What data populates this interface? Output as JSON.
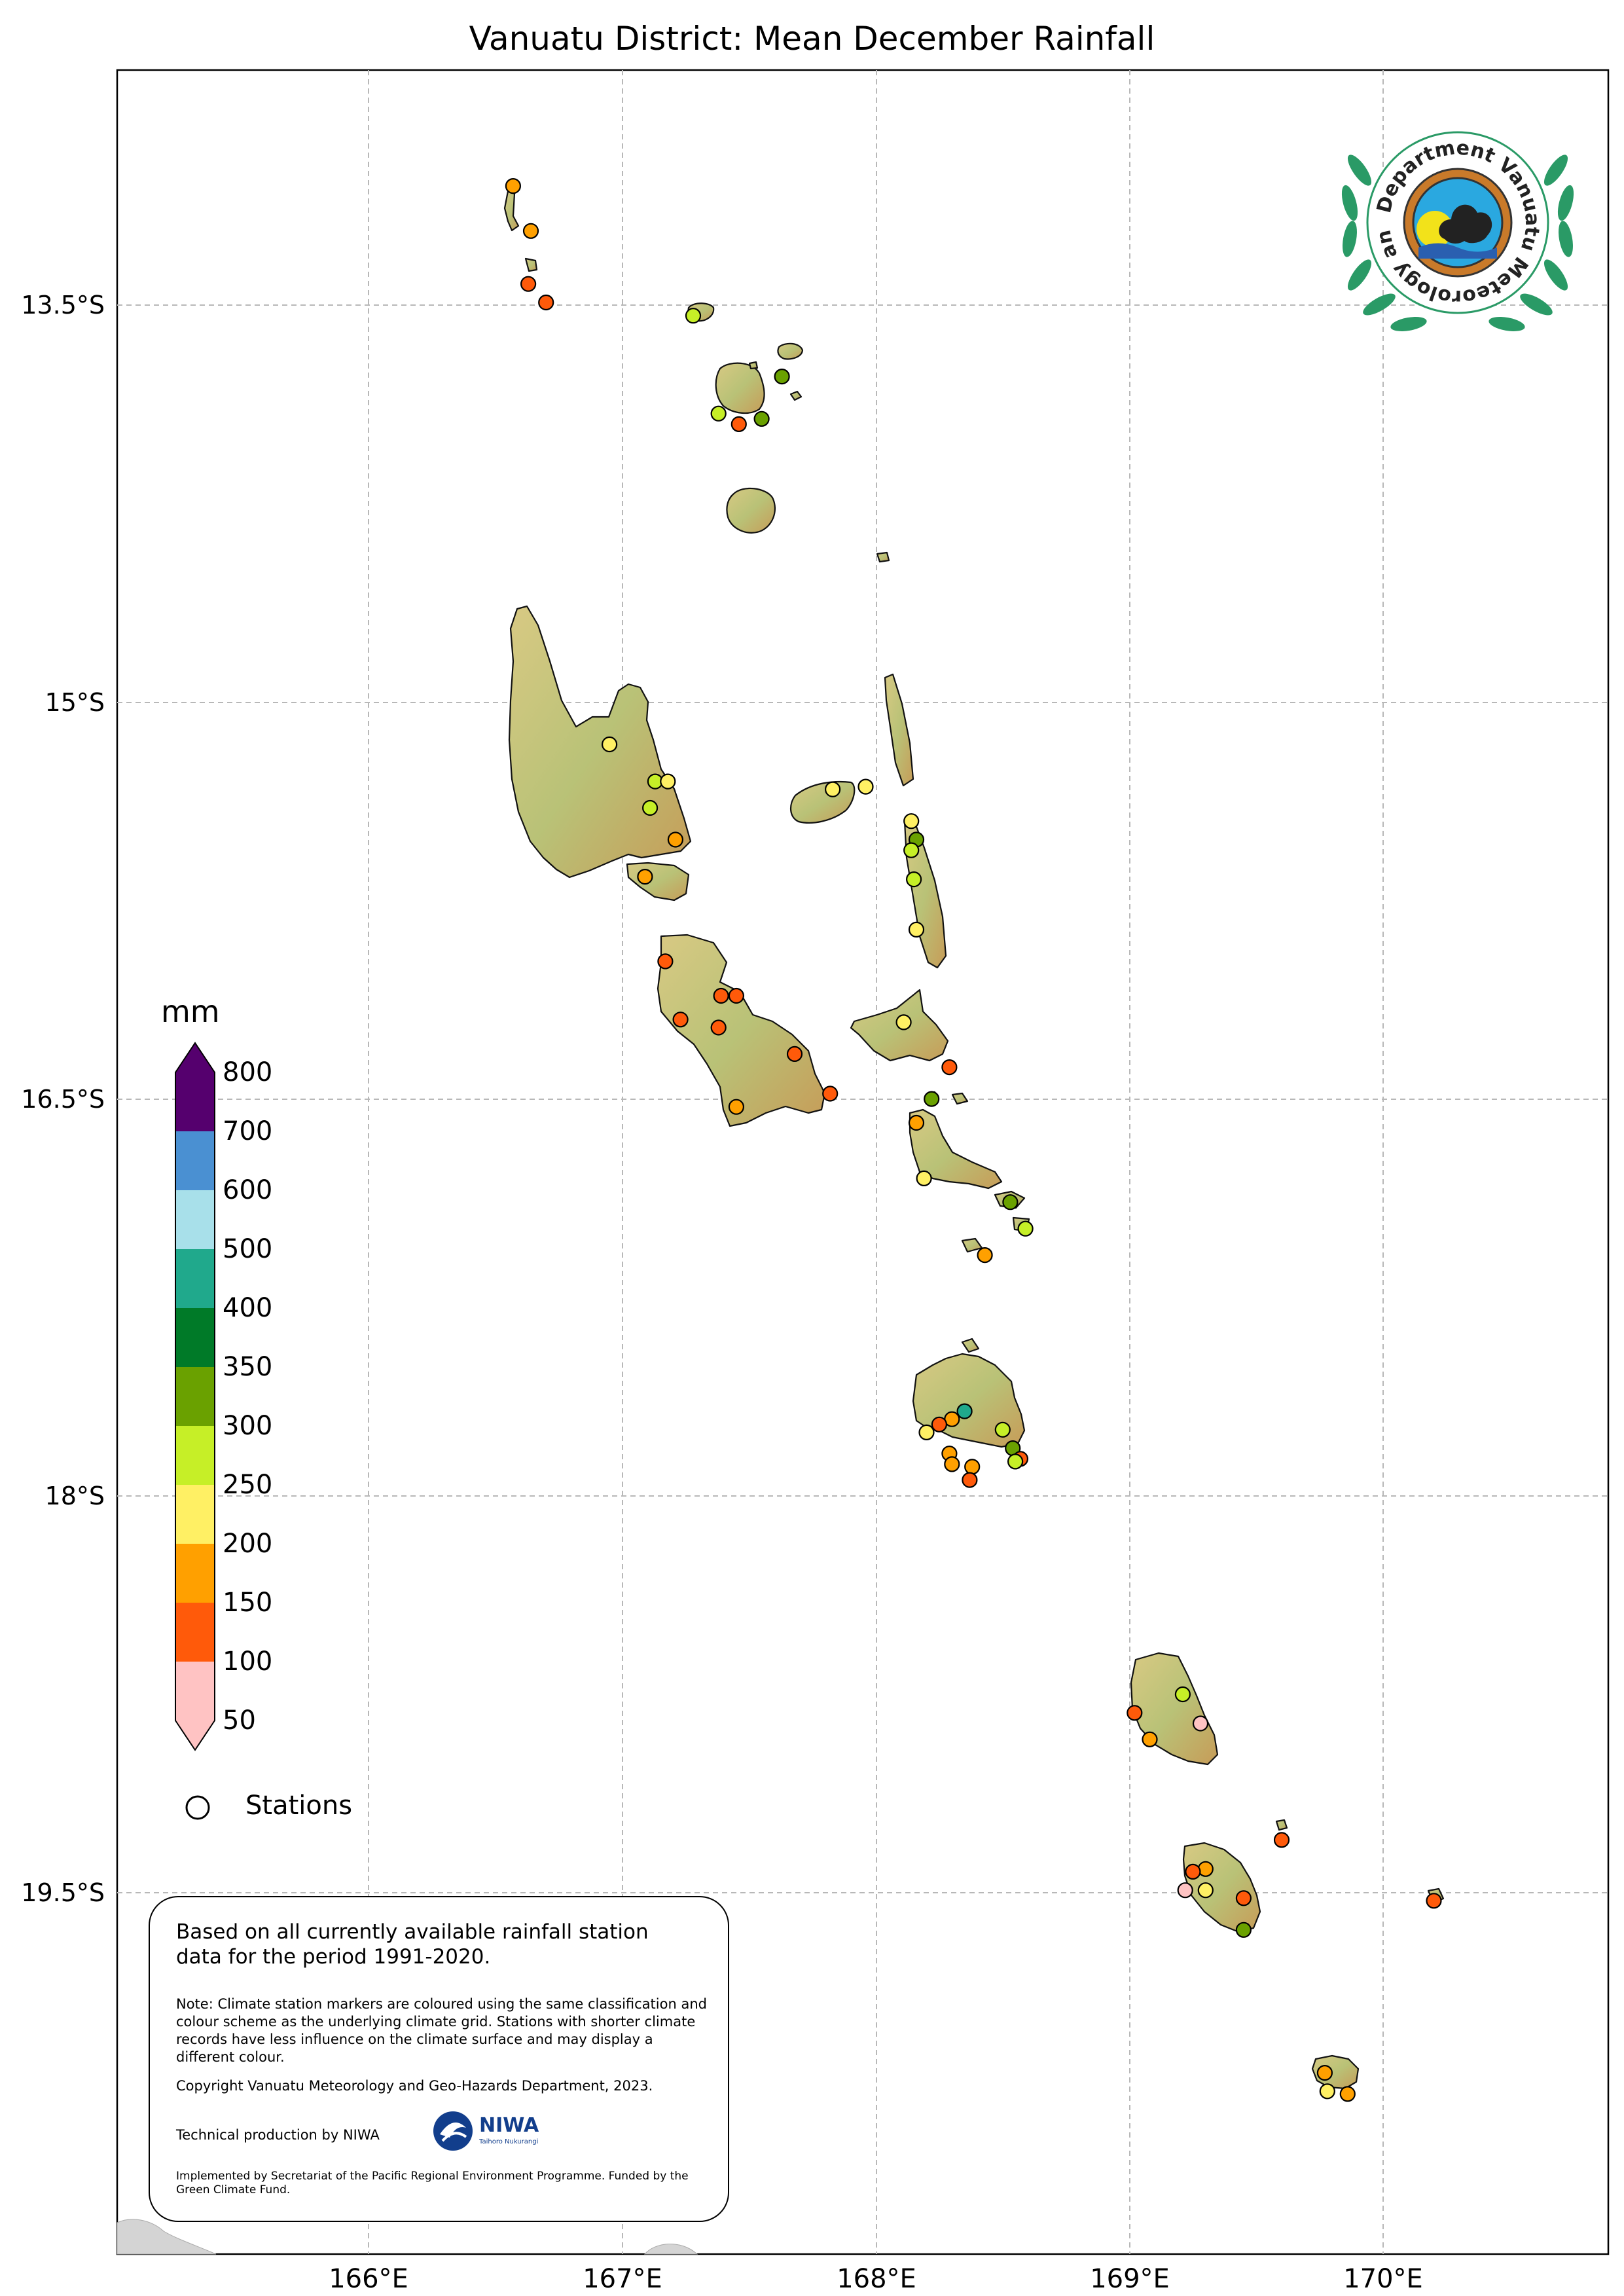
{
  "title": "Vanuatu District: Mean December Rainfall",
  "axes": {
    "lat_labels": [
      "13.5°S",
      "15°S",
      "16.5°S",
      "18°S",
      "19.5°S"
    ],
    "lon_labels": [
      "166°E",
      "167°E",
      "168°E",
      "169°E",
      "170°E"
    ]
  },
  "legend": {
    "unit": "mm",
    "ticks": [
      "800",
      "700",
      "600",
      "500",
      "400",
      "350",
      "300",
      "250",
      "200",
      "150",
      "100",
      "50"
    ],
    "colors": [
      "#55006e",
      "#4a90d2",
      "#a8e0ea",
      "#20a98c",
      "#007a28",
      "#6aa100",
      "#c6ef27",
      "#fff064",
      "#ffa000",
      "#ff5a0a",
      "#ffc3c3"
    ],
    "stations_label": "Stations"
  },
  "info": {
    "main": "Based on all currently available rainfall station data for the period 1991-2020.",
    "note": "Note: Climate station markers are coloured using the same classification and colour scheme as the underlying climate grid. Stations with shorter climate records have less influence on the climate surface and may display a different colour.",
    "copyright": "Copyright Vanuatu Meteorology and Geo-Hazards Department, 2023.",
    "technical": "Technical production by NIWA",
    "implemented": "Implemented by Secretariat of the Pacific Regional Environment Programme. Funded by the Green Climate Fund.",
    "niwa_name": "NIWA",
    "niwa_sub": "Taihoro Nukurangi"
  },
  "logo": {
    "ring_text": "Department Vanuatu Meteorology and Geo-Hazards"
  },
  "stations": [
    {
      "lon": 166.57,
      "lat": -13.05,
      "value": 175
    },
    {
      "lon": 166.64,
      "lat": -13.22,
      "value": 175
    },
    {
      "lon": 166.63,
      "lat": -13.42,
      "value": 125
    },
    {
      "lon": 166.7,
      "lat": -13.49,
      "value": 125
    },
    {
      "lon": 167.28,
      "lat": -13.54,
      "value": 275
    },
    {
      "lon": 167.63,
      "lat": -13.77,
      "value": 325
    },
    {
      "lon": 167.38,
      "lat": -13.91,
      "value": 275
    },
    {
      "lon": 167.55,
      "lat": -13.93,
      "value": 325
    },
    {
      "lon": 167.46,
      "lat": -13.95,
      "value": 125
    },
    {
      "lon": 166.95,
      "lat": -15.16,
      "value": 225
    },
    {
      "lon": 167.13,
      "lat": -15.3,
      "value": 275
    },
    {
      "lon": 167.18,
      "lat": -15.3,
      "value": 225
    },
    {
      "lon": 167.11,
      "lat": -15.4,
      "value": 275
    },
    {
      "lon": 167.21,
      "lat": -15.52,
      "value": 175
    },
    {
      "lon": 167.09,
      "lat": -15.66,
      "value": 175
    },
    {
      "lon": 167.96,
      "lat": -15.32,
      "value": 225
    },
    {
      "lon": 167.83,
      "lat": -15.33,
      "value": 225
    },
    {
      "lon": 168.14,
      "lat": -15.45,
      "value": 225
    },
    {
      "lon": 168.16,
      "lat": -15.52,
      "value": 325
    },
    {
      "lon": 168.14,
      "lat": -15.56,
      "value": 275
    },
    {
      "lon": 168.15,
      "lat": -15.67,
      "value": 275
    },
    {
      "lon": 168.16,
      "lat": -15.86,
      "value": 225
    },
    {
      "lon": 167.17,
      "lat": -15.98,
      "value": 125
    },
    {
      "lon": 167.39,
      "lat": -16.11,
      "value": 125
    },
    {
      "lon": 167.45,
      "lat": -16.11,
      "value": 125
    },
    {
      "lon": 167.23,
      "lat": -16.2,
      "value": 125
    },
    {
      "lon": 167.38,
      "lat": -16.23,
      "value": 125
    },
    {
      "lon": 167.68,
      "lat": -16.33,
      "value": 125
    },
    {
      "lon": 167.82,
      "lat": -16.48,
      "value": 125
    },
    {
      "lon": 167.45,
      "lat": -16.53,
      "value": 175
    },
    {
      "lon": 168.11,
      "lat": -16.21,
      "value": 225
    },
    {
      "lon": 168.29,
      "lat": -16.38,
      "value": 125
    },
    {
      "lon": 168.22,
      "lat": -16.5,
      "value": 325
    },
    {
      "lon": 168.16,
      "lat": -16.59,
      "value": 175
    },
    {
      "lon": 168.19,
      "lat": -16.8,
      "value": 225
    },
    {
      "lon": 168.53,
      "lat": -16.89,
      "value": 325
    },
    {
      "lon": 168.59,
      "lat": -16.99,
      "value": 275
    },
    {
      "lon": 168.43,
      "lat": -17.09,
      "value": 175
    },
    {
      "lon": 168.35,
      "lat": -17.68,
      "value": 425
    },
    {
      "lon": 168.3,
      "lat": -17.71,
      "value": 175
    },
    {
      "lon": 168.25,
      "lat": -17.73,
      "value": 125
    },
    {
      "lon": 168.2,
      "lat": -17.76,
      "value": 225
    },
    {
      "lon": 168.5,
      "lat": -17.75,
      "value": 275
    },
    {
      "lon": 168.54,
      "lat": -17.82,
      "value": 325
    },
    {
      "lon": 168.57,
      "lat": -17.86,
      "value": 125
    },
    {
      "lon": 168.55,
      "lat": -17.87,
      "value": 275
    },
    {
      "lon": 168.29,
      "lat": -17.84,
      "value": 175
    },
    {
      "lon": 168.3,
      "lat": -17.88,
      "value": 175
    },
    {
      "lon": 168.38,
      "lat": -17.89,
      "value": 175
    },
    {
      "lon": 168.37,
      "lat": -17.94,
      "value": 125
    },
    {
      "lon": 169.21,
      "lat": -18.75,
      "value": 275
    },
    {
      "lon": 169.02,
      "lat": -18.82,
      "value": 125
    },
    {
      "lon": 169.28,
      "lat": -18.86,
      "value": 75
    },
    {
      "lon": 169.08,
      "lat": -18.92,
      "value": 175
    },
    {
      "lon": 169.6,
      "lat": -19.3,
      "value": 125
    },
    {
      "lon": 169.3,
      "lat": -19.41,
      "value": 175
    },
    {
      "lon": 169.25,
      "lat": -19.42,
      "value": 125
    },
    {
      "lon": 169.22,
      "lat": -19.49,
      "value": 75
    },
    {
      "lon": 169.3,
      "lat": -19.49,
      "value": 225
    },
    {
      "lon": 169.45,
      "lat": -19.52,
      "value": 125
    },
    {
      "lon": 169.45,
      "lat": -19.64,
      "value": 325
    },
    {
      "lon": 170.2,
      "lat": -19.53,
      "value": 125
    },
    {
      "lon": 169.77,
      "lat": -20.18,
      "value": 175
    },
    {
      "lon": 169.78,
      "lat": -20.25,
      "value": 225
    },
    {
      "lon": 169.86,
      "lat": -20.26,
      "value": 175
    }
  ]
}
